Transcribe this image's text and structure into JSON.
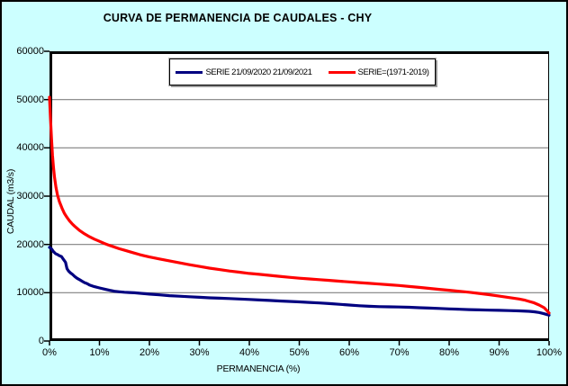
{
  "colors": {
    "background": "#CCFFFF",
    "plot_background": "#FFFFFF",
    "grid": "#808080",
    "axis": "#000000",
    "series_blue": "#000080",
    "series_red": "#FF0000"
  },
  "chart_data": {
    "type": "line",
    "title": "CURVA DE PERMANENCIA DE CAUDALES - CHY",
    "xlabel": "PERMANENCIA (%)",
    "ylabel": "CAUDAL (m3/s)",
    "xlim": [
      0,
      100
    ],
    "ylim": [
      0,
      60000
    ],
    "x_tick_labels": [
      "0%",
      "10%",
      "20%",
      "30%",
      "40%",
      "50%",
      "60%",
      "70%",
      "80%",
      "90%",
      "100%"
    ],
    "y_tick_labels": [
      "0",
      "10000",
      "20000",
      "30000",
      "40000",
      "50000",
      "60000"
    ],
    "grid": "horizontal gridlines every 10000",
    "legend_position": "top-center-inside",
    "series": [
      {
        "name": "SERIE 21/09/2020 21/09/2021",
        "color": "#000080",
        "points": [
          [
            0,
            19400
          ],
          [
            0.4,
            19100
          ],
          [
            0.8,
            18500
          ],
          [
            1.2,
            18100
          ],
          [
            1.6,
            17900
          ],
          [
            2,
            17650
          ],
          [
            2.4,
            17500
          ],
          [
            2.8,
            16900
          ],
          [
            3.2,
            16300
          ],
          [
            3.5,
            15000
          ],
          [
            3.8,
            14500
          ],
          [
            4.2,
            14100
          ],
          [
            4.6,
            13800
          ],
          [
            5,
            13400
          ],
          [
            5.5,
            13000
          ],
          [
            6,
            12700
          ],
          [
            6.5,
            12400
          ],
          [
            7,
            12100
          ],
          [
            7.5,
            11900
          ],
          [
            8,
            11600
          ],
          [
            9,
            11250
          ],
          [
            10,
            11000
          ],
          [
            11,
            10750
          ],
          [
            12,
            10500
          ],
          [
            13,
            10300
          ],
          [
            14,
            10200
          ],
          [
            15,
            10100
          ],
          [
            16,
            10050
          ],
          [
            17,
            9980
          ],
          [
            18,
            9900
          ],
          [
            19,
            9800
          ],
          [
            20,
            9700
          ],
          [
            22,
            9550
          ],
          [
            24,
            9400
          ],
          [
            26,
            9280
          ],
          [
            28,
            9160
          ],
          [
            30,
            9050
          ],
          [
            32,
            8950
          ],
          [
            34,
            8870
          ],
          [
            36,
            8800
          ],
          [
            38,
            8700
          ],
          [
            40,
            8600
          ],
          [
            42,
            8500
          ],
          [
            44,
            8400
          ],
          [
            46,
            8300
          ],
          [
            48,
            8200
          ],
          [
            50,
            8100
          ],
          [
            52,
            8000
          ],
          [
            54,
            7880
          ],
          [
            56,
            7750
          ],
          [
            58,
            7600
          ],
          [
            60,
            7450
          ],
          [
            62,
            7300
          ],
          [
            64,
            7200
          ],
          [
            66,
            7120
          ],
          [
            68,
            7080
          ],
          [
            70,
            7050
          ],
          [
            72,
            6980
          ],
          [
            74,
            6900
          ],
          [
            76,
            6820
          ],
          [
            78,
            6740
          ],
          [
            80,
            6660
          ],
          [
            82,
            6580
          ],
          [
            84,
            6510
          ],
          [
            86,
            6450
          ],
          [
            88,
            6400
          ],
          [
            90,
            6350
          ],
          [
            92,
            6300
          ],
          [
            94,
            6250
          ],
          [
            96,
            6150
          ],
          [
            97,
            6050
          ],
          [
            98,
            5900
          ],
          [
            99,
            5650
          ],
          [
            100,
            5350
          ]
        ]
      },
      {
        "name": "SERIE=(1971-2019)",
        "color": "#FF0000",
        "points": [
          [
            0,
            50500
          ],
          [
            0.2,
            46000
          ],
          [
            0.4,
            42000
          ],
          [
            0.6,
            38500
          ],
          [
            0.8,
            36000
          ],
          [
            1,
            34000
          ],
          [
            1.3,
            31800
          ],
          [
            1.6,
            30200
          ],
          [
            2,
            28800
          ],
          [
            2.5,
            27500
          ],
          [
            3,
            26400
          ],
          [
            3.5,
            25600
          ],
          [
            4,
            24900
          ],
          [
            4.5,
            24300
          ],
          [
            5,
            23800
          ],
          [
            6,
            22900
          ],
          [
            7,
            22200
          ],
          [
            8,
            21600
          ],
          [
            9,
            21100
          ],
          [
            10,
            20650
          ],
          [
            11,
            20200
          ],
          [
            12,
            19800
          ],
          [
            13,
            19450
          ],
          [
            14,
            19100
          ],
          [
            15,
            18800
          ],
          [
            16,
            18500
          ],
          [
            17,
            18200
          ],
          [
            18,
            17900
          ],
          [
            19,
            17650
          ],
          [
            20,
            17400
          ],
          [
            22,
            17000
          ],
          [
            24,
            16600
          ],
          [
            26,
            16200
          ],
          [
            28,
            15800
          ],
          [
            30,
            15450
          ],
          [
            32,
            15100
          ],
          [
            34,
            14800
          ],
          [
            36,
            14500
          ],
          [
            38,
            14250
          ],
          [
            40,
            14000
          ],
          [
            42,
            13800
          ],
          [
            44,
            13600
          ],
          [
            46,
            13400
          ],
          [
            48,
            13200
          ],
          [
            50,
            13000
          ],
          [
            52,
            12850
          ],
          [
            54,
            12700
          ],
          [
            56,
            12550
          ],
          [
            58,
            12400
          ],
          [
            60,
            12250
          ],
          [
            62,
            12100
          ],
          [
            64,
            11950
          ],
          [
            66,
            11800
          ],
          [
            68,
            11650
          ],
          [
            70,
            11500
          ],
          [
            72,
            11300
          ],
          [
            74,
            11100
          ],
          [
            76,
            10900
          ],
          [
            78,
            10700
          ],
          [
            80,
            10500
          ],
          [
            82,
            10300
          ],
          [
            84,
            10100
          ],
          [
            86,
            9850
          ],
          [
            88,
            9600
          ],
          [
            90,
            9300
          ],
          [
            92,
            9000
          ],
          [
            94,
            8700
          ],
          [
            95,
            8500
          ],
          [
            96,
            8200
          ],
          [
            97,
            7900
          ],
          [
            98,
            7450
          ],
          [
            99,
            6900
          ],
          [
            99.5,
            6400
          ],
          [
            100,
            5800
          ]
        ]
      }
    ]
  }
}
